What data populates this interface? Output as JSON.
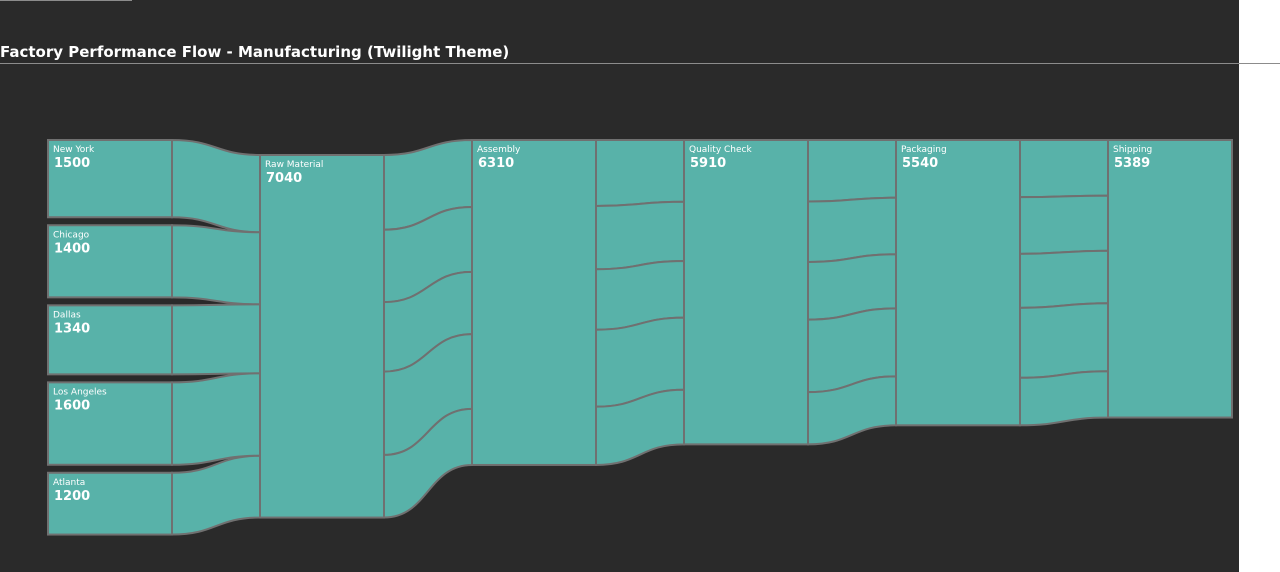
{
  "title": "Factory Performance Flow - Manufacturing (Twilight Theme)",
  "colors": {
    "background": "#2a2a2a",
    "node": "#58b2a9",
    "stroke": "#707070",
    "text": "#ffffff"
  },
  "chart_data": {
    "type": "sankey",
    "title": "Factory Performance Flow - Manufacturing (Twilight Theme)",
    "nodes": [
      {
        "id": "ny",
        "name": "New York",
        "value": 1500,
        "stage": 0
      },
      {
        "id": "chi",
        "name": "Chicago",
        "value": 1400,
        "stage": 0
      },
      {
        "id": "dal",
        "name": "Dallas",
        "value": 1340,
        "stage": 0
      },
      {
        "id": "la",
        "name": "Los Angeles",
        "value": 1600,
        "stage": 0
      },
      {
        "id": "atl",
        "name": "Atlanta",
        "value": 1200,
        "stage": 0
      },
      {
        "id": "raw",
        "name": "Raw Material",
        "value": 7040,
        "stage": 1
      },
      {
        "id": "asm",
        "name": "Assembly",
        "value": 6310,
        "stage": 2
      },
      {
        "id": "qc",
        "name": "Quality Check",
        "value": 5910,
        "stage": 3
      },
      {
        "id": "pkg",
        "name": "Packaging",
        "value": 5540,
        "stage": 4
      },
      {
        "id": "shp",
        "name": "Shipping",
        "value": 5389,
        "stage": 5
      }
    ],
    "links": [
      {
        "source": "ny",
        "target": "raw",
        "value": 1500
      },
      {
        "source": "chi",
        "target": "raw",
        "value": 1400
      },
      {
        "source": "dal",
        "target": "raw",
        "value": 1340
      },
      {
        "source": "la",
        "target": "raw",
        "value": 1600
      },
      {
        "source": "atl",
        "target": "raw",
        "value": 1200
      },
      {
        "source": "raw",
        "target": "asm",
        "value": 1300
      },
      {
        "source": "raw",
        "target": "asm",
        "value": 1260
      },
      {
        "source": "raw",
        "target": "asm",
        "value": 1210
      },
      {
        "source": "raw",
        "target": "asm",
        "value": 1450
      },
      {
        "source": "raw",
        "target": "asm",
        "value": 1090
      },
      {
        "source": "asm",
        "target": "qc",
        "value": 1200
      },
      {
        "source": "asm",
        "target": "qc",
        "value": 1150
      },
      {
        "source": "asm",
        "target": "qc",
        "value": 1100
      },
      {
        "source": "asm",
        "target": "qc",
        "value": 1400
      },
      {
        "source": "asm",
        "target": "qc",
        "value": 1060
      },
      {
        "source": "qc",
        "target": "pkg",
        "value": 1120
      },
      {
        "source": "qc",
        "target": "pkg",
        "value": 1100
      },
      {
        "source": "qc",
        "target": "pkg",
        "value": 1050
      },
      {
        "source": "qc",
        "target": "pkg",
        "value": 1320
      },
      {
        "source": "qc",
        "target": "pkg",
        "value": 950
      },
      {
        "source": "pkg",
        "target": "shp",
        "value": 1080
      },
      {
        "source": "pkg",
        "target": "shp",
        "value": 1070
      },
      {
        "source": "pkg",
        "target": "shp",
        "value": 1020
      },
      {
        "source": "pkg",
        "target": "shp",
        "value": 1320
      },
      {
        "source": "pkg",
        "target": "shp",
        "value": 899
      }
    ]
  }
}
